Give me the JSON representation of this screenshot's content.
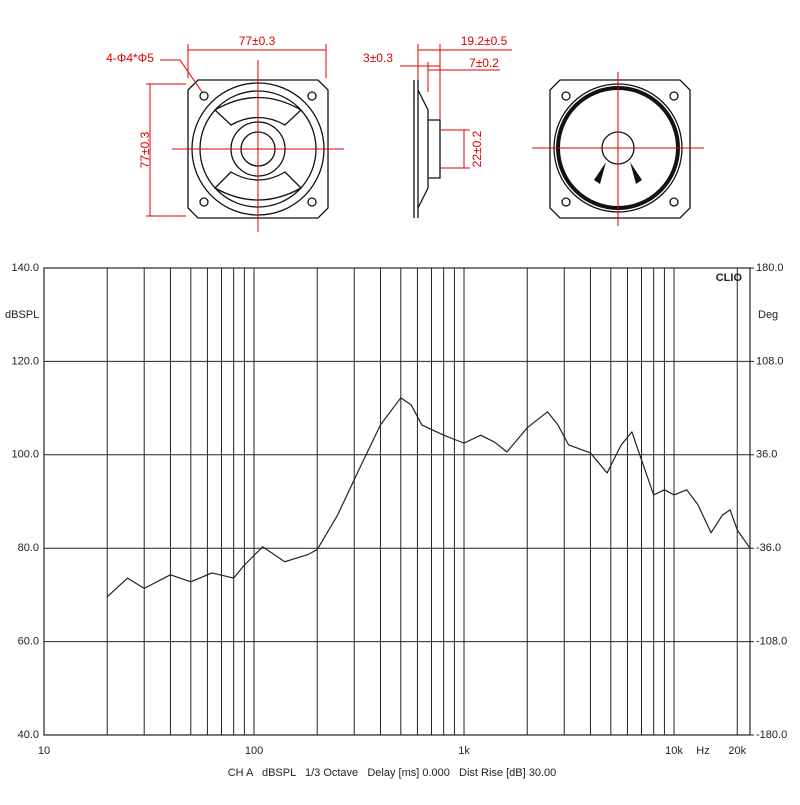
{
  "drawing": {
    "front_width": "77±0.3",
    "holes": "4-Φ4*Φ5",
    "front_height": "77±0.3",
    "flange": "3±0.3",
    "depth": "19.2±0.5",
    "magnet": "7±0.2",
    "magnet_dia": "22±0.2"
  },
  "chart_data": {
    "type": "line",
    "y_label": "dBSPL",
    "y2_label": "Deg",
    "brand": "CLIO",
    "x_unit": "Hz",
    "footer": "CH A   dBSPL   1/3 Octave   Delay [ms] 0.000   Dist Rise [dB] 30.00",
    "log_x": true,
    "grid": true,
    "xlim": [
      10,
      23000
    ],
    "xticks": [
      10,
      100,
      {
        "value": 1000,
        "label": "1k"
      },
      {
        "value": 10000,
        "label": "10k"
      },
      {
        "value": 20000,
        "label": "20k"
      }
    ],
    "xminor": [
      20,
      30,
      40,
      50,
      60,
      70,
      80,
      90,
      200,
      300,
      400,
      500,
      600,
      700,
      800,
      900,
      2000,
      3000,
      4000,
      5000,
      6000,
      7000,
      8000,
      9000
    ],
    "ylim": [
      40,
      140
    ],
    "yticks": [
      {
        "value": 40,
        "label": "40.0"
      },
      {
        "value": 60,
        "label": "60.0"
      },
      {
        "value": 80,
        "label": "80.0"
      },
      {
        "value": 100,
        "label": "100.0"
      },
      {
        "value": 120,
        "label": "120.0"
      },
      {
        "value": 140,
        "label": "140.0"
      }
    ],
    "y2lim": [
      -180,
      180
    ],
    "y2ticks": [
      {
        "value": -180,
        "label": "-180.0"
      },
      {
        "value": -108,
        "label": "-108.0"
      },
      {
        "value": -36,
        "label": "-36.0"
      },
      {
        "value": 36,
        "label": "36.0"
      },
      {
        "value": 108,
        "label": "108.0"
      },
      {
        "value": 180,
        "label": "180.0"
      }
    ],
    "x": [
      20,
      25,
      30,
      40,
      50,
      63,
      80,
      90,
      110,
      140,
      180,
      200,
      250,
      315,
      400,
      500,
      560,
      630,
      800,
      1000,
      1200,
      1400,
      1600,
      2000,
      2500,
      2800,
      3150,
      4000,
      4800,
      5600,
      6300,
      7000,
      8000,
      9000,
      10000,
      11500,
      13000,
      15000,
      17000,
      18500,
      20000,
      23000
    ],
    "series": [
      {
        "color": "#222222",
        "values": [
          69.6,
          73.6,
          71.4,
          74.3,
          72.8,
          74.7,
          73.6,
          76.4,
          80.3,
          77.1,
          78.6,
          79.7,
          87.1,
          96.7,
          106.4,
          112.2,
          110.7,
          106.4,
          104.2,
          102.5,
          104.2,
          102.7,
          100.6,
          105.8,
          109.2,
          106.4,
          102.1,
          100.4,
          96.1,
          102.1,
          104.9,
          98.9,
          91.4,
          92.5,
          91.4,
          92.5,
          89.3,
          83.3,
          87.1,
          88.2,
          83.9,
          80.0
        ]
      }
    ]
  }
}
